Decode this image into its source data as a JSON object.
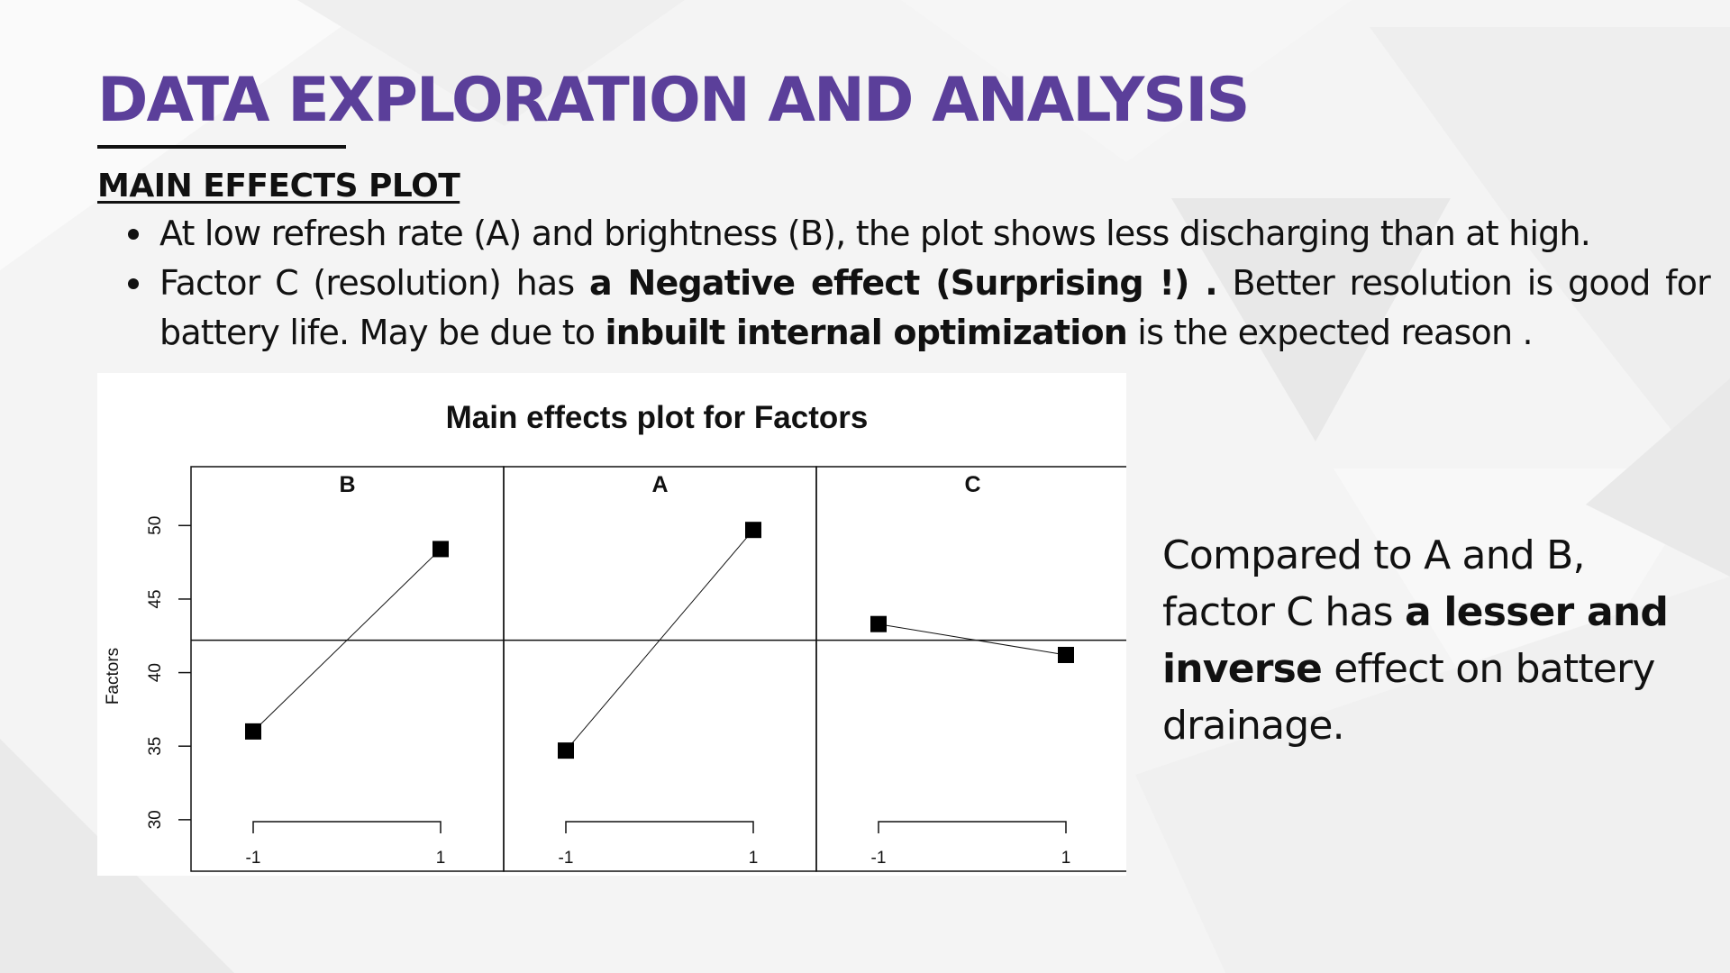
{
  "slide": {
    "title": "DATA EXPLORATION AND ANALYSIS",
    "section_heading": "MAIN EFFECTS PLOT",
    "bullets": [
      {
        "parts": [
          {
            "text": "At low refresh rate (A) and brightness (B), the plot shows less discharging than at high.",
            "bold": false
          }
        ]
      },
      {
        "parts": [
          {
            "text": "Factor C (resolution) has ",
            "bold": false
          },
          {
            "text": "a Negative effect (Surprising !) .",
            "bold": true
          },
          {
            "text": " Better resolution is good for battery life. May be due to ",
            "bold": false
          },
          {
            "text": "inbuilt internal optimization",
            "bold": true
          },
          {
            "text": " is the expected reason .",
            "bold": false
          }
        ]
      }
    ],
    "side_text": [
      {
        "text": "Compared to A and B, factor C has ",
        "bold": false
      },
      {
        "text": "a lesser and inverse",
        "bold": true
      },
      {
        "text": " effect on battery drainage.",
        "bold": false
      }
    ],
    "colors": {
      "title": "#5b3f9a",
      "text": "#111111",
      "background": "#f3f3f3"
    }
  },
  "chart_data": {
    "type": "line",
    "title": "Main effects plot for Factors",
    "ylabel": "Factors",
    "ylim": [
      26.5,
      54
    ],
    "yticks": [
      30,
      35,
      40,
      45,
      50
    ],
    "grand_mean": 42.2,
    "x_levels": [
      "-1",
      "1"
    ],
    "panels": [
      {
        "name": "B",
        "values": [
          36.0,
          48.4
        ]
      },
      {
        "name": "A",
        "values": [
          34.7,
          49.7
        ]
      },
      {
        "name": "C",
        "values": [
          43.3,
          41.2
        ]
      }
    ]
  }
}
